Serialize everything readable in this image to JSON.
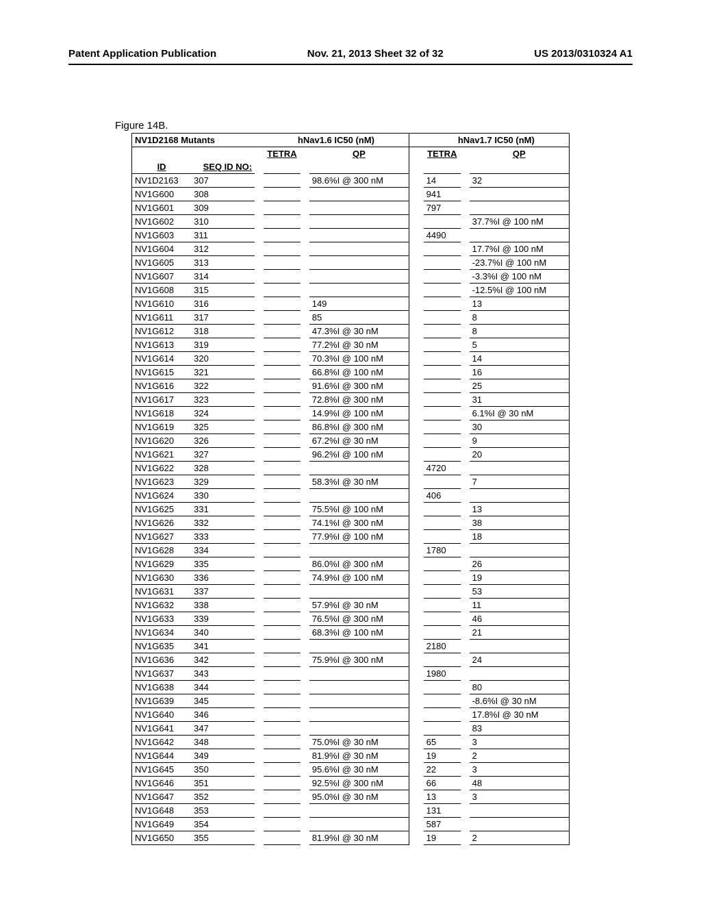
{
  "header": {
    "left": "Patent Application Publication",
    "center": "Nov. 21, 2013  Sheet 32 of 32",
    "right": "US 2013/0310324 A1"
  },
  "figure_label": "Figure 14B.",
  "table": {
    "title_left": "NV1D2168 Mutants",
    "title_mid": "hNav1.6 IC50 (nM)",
    "title_right": "hNav1.7 IC50 (nM)",
    "sub_tetra": "TETRA",
    "sub_qp": "QP",
    "col_id": "ID",
    "col_seq": "SEQ ID NO:",
    "rows": [
      {
        "id": "NV1D2163",
        "seq": "307",
        "t1": "",
        "q1": "98.6%I @ 300 nM",
        "t2": "14",
        "q2": "32"
      },
      {
        "id": "NV1G600",
        "seq": "308",
        "t1": "",
        "q1": "",
        "t2": "941",
        "q2": ""
      },
      {
        "id": "NV1G601",
        "seq": "309",
        "t1": "",
        "q1": "",
        "t2": "797",
        "q2": ""
      },
      {
        "id": "NV1G602",
        "seq": "310",
        "t1": "",
        "q1": "",
        "t2": "",
        "q2": "37.7%I @ 100 nM"
      },
      {
        "id": "NV1G603",
        "seq": "311",
        "t1": "",
        "q1": "",
        "t2": "4490",
        "q2": ""
      },
      {
        "id": "NV1G604",
        "seq": "312",
        "t1": "",
        "q1": "",
        "t2": "",
        "q2": "17.7%I @ 100 nM"
      },
      {
        "id": "NV1G605",
        "seq": "313",
        "t1": "",
        "q1": "",
        "t2": "",
        "q2": "-23.7%I @ 100 nM"
      },
      {
        "id": "NV1G607",
        "seq": "314",
        "t1": "",
        "q1": "",
        "t2": "",
        "q2": "-3.3%I @ 100 nM"
      },
      {
        "id": "NV1G608",
        "seq": "315",
        "t1": "",
        "q1": "",
        "t2": "",
        "q2": "-12.5%I @ 100 nM"
      },
      {
        "id": "NV1G610",
        "seq": "316",
        "t1": "",
        "q1": "149",
        "t2": "",
        "q2": "13"
      },
      {
        "id": "NV1G611",
        "seq": "317",
        "t1": "",
        "q1": "85",
        "t2": "",
        "q2": "8"
      },
      {
        "id": "NV1G612",
        "seq": "318",
        "t1": "",
        "q1": "47.3%I @ 30 nM",
        "t2": "",
        "q2": "8"
      },
      {
        "id": "NV1G613",
        "seq": "319",
        "t1": "",
        "q1": "77.2%I @ 30 nM",
        "t2": "",
        "q2": "5"
      },
      {
        "id": "NV1G614",
        "seq": "320",
        "t1": "",
        "q1": "70.3%I @ 100 nM",
        "t2": "",
        "q2": "14"
      },
      {
        "id": "NV1G615",
        "seq": "321",
        "t1": "",
        "q1": "66.8%I @ 100 nM",
        "t2": "",
        "q2": "16"
      },
      {
        "id": "NV1G616",
        "seq": "322",
        "t1": "",
        "q1": "91.6%I @ 300 nM",
        "t2": "",
        "q2": "25"
      },
      {
        "id": "NV1G617",
        "seq": "323",
        "t1": "",
        "q1": "72.8%I @ 300 nM",
        "t2": "",
        "q2": "31"
      },
      {
        "id": "NV1G618",
        "seq": "324",
        "t1": "",
        "q1": "14.9%I @ 100 nM",
        "t2": "",
        "q2": "6.1%I @ 30 nM"
      },
      {
        "id": "NV1G619",
        "seq": "325",
        "t1": "",
        "q1": "86.8%I @ 300 nM",
        "t2": "",
        "q2": "30"
      },
      {
        "id": "NV1G620",
        "seq": "326",
        "t1": "",
        "q1": "67.2%I @ 30 nM",
        "t2": "",
        "q2": "9"
      },
      {
        "id": "NV1G621",
        "seq": "327",
        "t1": "",
        "q1": "96.2%I @ 100 nM",
        "t2": "",
        "q2": "20"
      },
      {
        "id": "NV1G622",
        "seq": "328",
        "t1": "",
        "q1": "",
        "t2": "4720",
        "q2": ""
      },
      {
        "id": "NV1G623",
        "seq": "329",
        "t1": "",
        "q1": "58.3%I @ 30 nM",
        "t2": "",
        "q2": "7"
      },
      {
        "id": "NV1G624",
        "seq": "330",
        "t1": "",
        "q1": "",
        "t2": "406",
        "q2": ""
      },
      {
        "id": "NV1G625",
        "seq": "331",
        "t1": "",
        "q1": "75.5%I @ 100 nM",
        "t2": "",
        "q2": "13"
      },
      {
        "id": "NV1G626",
        "seq": "332",
        "t1": "",
        "q1": "74.1%I @ 300 nM",
        "t2": "",
        "q2": "38"
      },
      {
        "id": "NV1G627",
        "seq": "333",
        "t1": "",
        "q1": "77.9%I @ 100 nM",
        "t2": "",
        "q2": "18"
      },
      {
        "id": "NV1G628",
        "seq": "334",
        "t1": "",
        "q1": "",
        "t2": "1780",
        "q2": ""
      },
      {
        "id": "NV1G629",
        "seq": "335",
        "t1": "",
        "q1": "86.0%I @ 300 nM",
        "t2": "",
        "q2": "26"
      },
      {
        "id": "NV1G630",
        "seq": "336",
        "t1": "",
        "q1": "74.9%I @ 100 nM",
        "t2": "",
        "q2": "19"
      },
      {
        "id": "NV1G631",
        "seq": "337",
        "t1": "",
        "q1": "",
        "t2": "",
        "q2": "53"
      },
      {
        "id": "NV1G632",
        "seq": "338",
        "t1": "",
        "q1": "57.9%I @ 30 nM",
        "t2": "",
        "q2": "11"
      },
      {
        "id": "NV1G633",
        "seq": "339",
        "t1": "",
        "q1": "76.5%I @ 300 nM",
        "t2": "",
        "q2": "46"
      },
      {
        "id": "NV1G634",
        "seq": "340",
        "t1": "",
        "q1": "68.3%I @ 100 nM",
        "t2": "",
        "q2": "21"
      },
      {
        "id": "NV1G635",
        "seq": "341",
        "t1": "",
        "q1": "",
        "t2": "2180",
        "q2": ""
      },
      {
        "id": "NV1G636",
        "seq": "342",
        "t1": "",
        "q1": "75.9%I @ 300 nM",
        "t2": "",
        "q2": "24"
      },
      {
        "id": "NV1G637",
        "seq": "343",
        "t1": "",
        "q1": "",
        "t2": "1980",
        "q2": ""
      },
      {
        "id": "NV1G638",
        "seq": "344",
        "t1": "",
        "q1": "",
        "t2": "",
        "q2": "80"
      },
      {
        "id": "NV1G639",
        "seq": "345",
        "t1": "",
        "q1": "",
        "t2": "",
        "q2": "-8.6%I @ 30 nM"
      },
      {
        "id": "NV1G640",
        "seq": "346",
        "t1": "",
        "q1": "",
        "t2": "",
        "q2": "17.8%I @ 30 nM"
      },
      {
        "id": "NV1G641",
        "seq": "347",
        "t1": "",
        "q1": "",
        "t2": "",
        "q2": "83"
      },
      {
        "id": "NV1G642",
        "seq": "348",
        "t1": "",
        "q1": "75.0%I @ 30 nM",
        "t2": "65",
        "q2": "3"
      },
      {
        "id": "NV1G644",
        "seq": "349",
        "t1": "",
        "q1": "81.9%I @ 30 nM",
        "t2": "19",
        "q2": "2"
      },
      {
        "id": "NV1G645",
        "seq": "350",
        "t1": "",
        "q1": "95.6%I @ 30 nM",
        "t2": "22",
        "q2": "3"
      },
      {
        "id": "NV1G646",
        "seq": "351",
        "t1": "",
        "q1": "92.5%I @ 300 nM",
        "t2": "66",
        "q2": "48"
      },
      {
        "id": "NV1G647",
        "seq": "352",
        "t1": "",
        "q1": "95.0%I @ 30 nM",
        "t2": "13",
        "q2": "3"
      },
      {
        "id": "NV1G648",
        "seq": "353",
        "t1": "",
        "q1": "",
        "t2": "131",
        "q2": ""
      },
      {
        "id": "NV1G649",
        "seq": "354",
        "t1": "",
        "q1": "",
        "t2": "587",
        "q2": ""
      },
      {
        "id": "NV1G650",
        "seq": "355",
        "t1": "",
        "q1": "81.9%I @ 30 nM",
        "t2": "19",
        "q2": "2"
      }
    ]
  }
}
